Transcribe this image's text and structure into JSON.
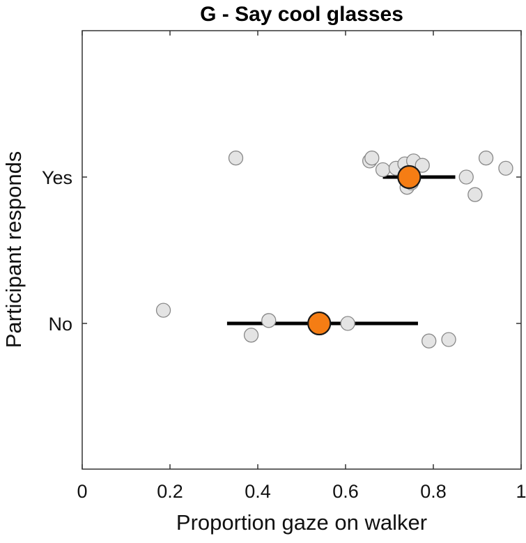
{
  "chart_data": {
    "type": "scatter",
    "title": "G - Say cool glasses",
    "xlabel": "Proportion gaze on walker",
    "ylabel": "Participant responds",
    "xlim": [
      0,
      1
    ],
    "xticks": [
      0,
      0.2,
      0.4,
      0.6,
      0.8,
      1
    ],
    "xtick_labels": [
      "0",
      "0.2",
      "0.4",
      "0.6",
      "0.8",
      "1"
    ],
    "categories": [
      "No",
      "Yes"
    ],
    "grid": false,
    "series": [
      {
        "name": "Yes",
        "points": [
          {
            "x": 0.35,
            "jitter": 0.13
          },
          {
            "x": 0.655,
            "jitter": 0.11
          },
          {
            "x": 0.66,
            "jitter": 0.13
          },
          {
            "x": 0.685,
            "jitter": 0.05
          },
          {
            "x": 0.715,
            "jitter": 0.06
          },
          {
            "x": 0.735,
            "jitter": 0.09
          },
          {
            "x": 0.74,
            "jitter": -0.07
          },
          {
            "x": 0.75,
            "jitter": -0.04
          },
          {
            "x": 0.755,
            "jitter": 0.11
          },
          {
            "x": 0.775,
            "jitter": 0.08
          },
          {
            "x": 0.875,
            "jitter": 0.0
          },
          {
            "x": 0.895,
            "jitter": -0.12
          },
          {
            "x": 0.92,
            "jitter": 0.13
          },
          {
            "x": 0.965,
            "jitter": 0.06
          }
        ],
        "mean": 0.745,
        "ci": [
          0.685,
          0.85
        ]
      },
      {
        "name": "No",
        "points": [
          {
            "x": 0.185,
            "jitter": 0.09
          },
          {
            "x": 0.385,
            "jitter": -0.08
          },
          {
            "x": 0.425,
            "jitter": 0.02
          },
          {
            "x": 0.605,
            "jitter": 0.0
          },
          {
            "x": 0.79,
            "jitter": -0.12
          },
          {
            "x": 0.835,
            "jitter": -0.11
          }
        ],
        "mean": 0.54,
        "ci": [
          0.33,
          0.765
        ]
      }
    ],
    "colors": {
      "point_fill": "#e4e4e4",
      "point_stroke": "#888888",
      "mean_fill": "#f57d14",
      "mean_stroke": "#1a1a1a",
      "errorbar": "#000000",
      "axis": "#333333"
    }
  }
}
